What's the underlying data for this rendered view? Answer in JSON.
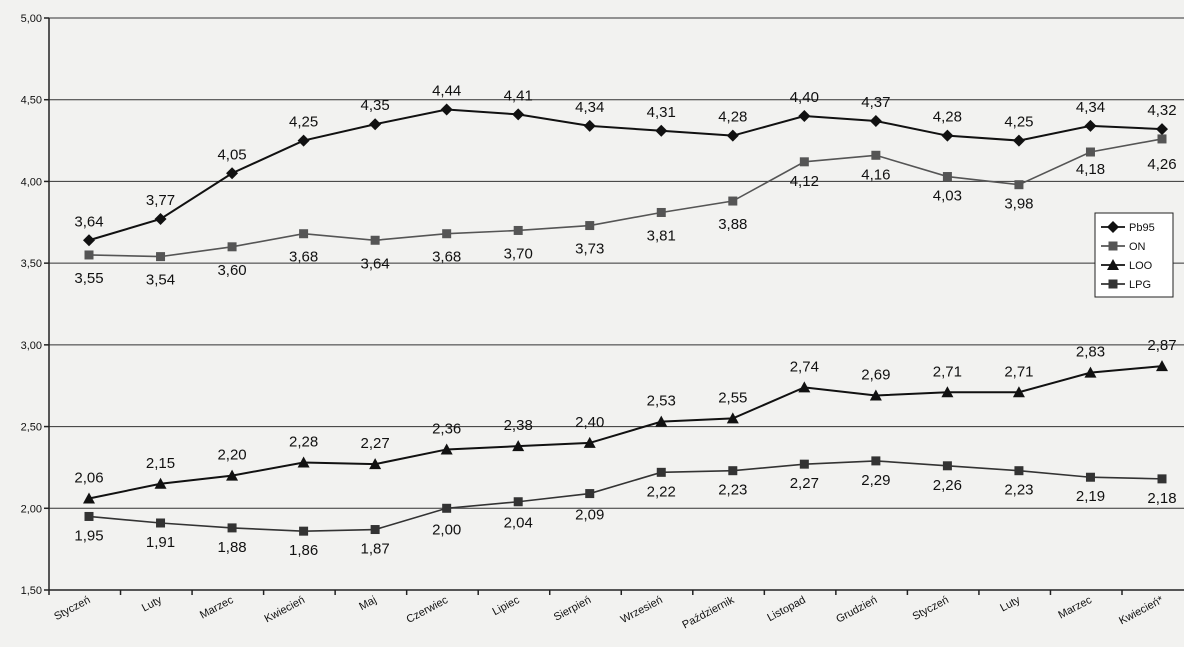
{
  "chart_data": {
    "type": "line",
    "categories": [
      "Styczeń",
      "Luty",
      "Marzec",
      "Kwiecień",
      "Maj",
      "Czerwiec",
      "Lipiec",
      "Sierpień",
      "Wrzesień",
      "Październik",
      "Listopad",
      "Grudzień",
      "Styczeń",
      "Luty",
      "Marzec",
      "Kwiecień*"
    ],
    "series": [
      {
        "name": "Pb95",
        "color": "#111111",
        "marker": "diamond",
        "values": [
          3.64,
          3.77,
          4.05,
          4.25,
          4.35,
          4.44,
          4.41,
          4.34,
          4.31,
          4.28,
          4.4,
          4.37,
          4.28,
          4.25,
          4.34,
          4.32
        ],
        "labels": [
          "3,64",
          "3,77",
          "4,05",
          "4,25",
          "4,35",
          "4,44",
          "4,41",
          "4,34",
          "4,31",
          "4,28",
          "4,40",
          "4,37",
          "4,28",
          "4,25",
          "4,34",
          "4,32"
        ]
      },
      {
        "name": "ON",
        "color": "#555555",
        "marker": "square",
        "values": [
          3.55,
          3.54,
          3.6,
          3.68,
          3.64,
          3.68,
          3.7,
          3.73,
          3.81,
          3.88,
          4.12,
          4.16,
          4.03,
          3.98,
          4.18,
          4.26
        ],
        "labels": [
          "3,55",
          "3,54",
          "3,60",
          "3,68",
          "3,64",
          "3,68",
          "3,70",
          "3,73",
          "3,81",
          "3,88",
          "4,12",
          "4,16",
          "4,03",
          "3,98",
          "4,18",
          "4,26"
        ]
      },
      {
        "name": "LOO",
        "color": "#111111",
        "marker": "triangle",
        "values": [
          2.06,
          2.15,
          2.2,
          2.28,
          2.27,
          2.36,
          2.38,
          2.4,
          2.53,
          2.55,
          2.74,
          2.69,
          2.71,
          2.71,
          2.83,
          2.87
        ],
        "labels": [
          "2,06",
          "2,15",
          "2,20",
          "2,28",
          "2,27",
          "2,36",
          "2,38",
          "2,40",
          "2,53",
          "2,55",
          "2,74",
          "2,69",
          "2,71",
          "2,71",
          "2,83",
          "2,87"
        ]
      },
      {
        "name": "LPG",
        "color": "#333333",
        "marker": "square",
        "values": [
          1.95,
          1.91,
          1.88,
          1.86,
          1.87,
          2.0,
          2.04,
          2.09,
          2.22,
          2.23,
          2.27,
          2.29,
          2.26,
          2.23,
          2.19,
          2.18
        ],
        "labels": [
          "1,95",
          "1,91",
          "1,88",
          "1,86",
          "1,87",
          "2,00",
          "2,04",
          "2,09",
          "2,22",
          "2,23",
          "2,27",
          "2,29",
          "2,26",
          "2,23",
          "2,19",
          "2,18"
        ]
      }
    ],
    "ylim": [
      1.5,
      5.0
    ],
    "yticks": [
      "1,50",
      "2,00",
      "2,50",
      "3,00",
      "3,50",
      "4,00",
      "4,50",
      "5,00"
    ],
    "grid": true,
    "legend_position": "right",
    "title": "",
    "xlabel": "",
    "ylabel": ""
  }
}
